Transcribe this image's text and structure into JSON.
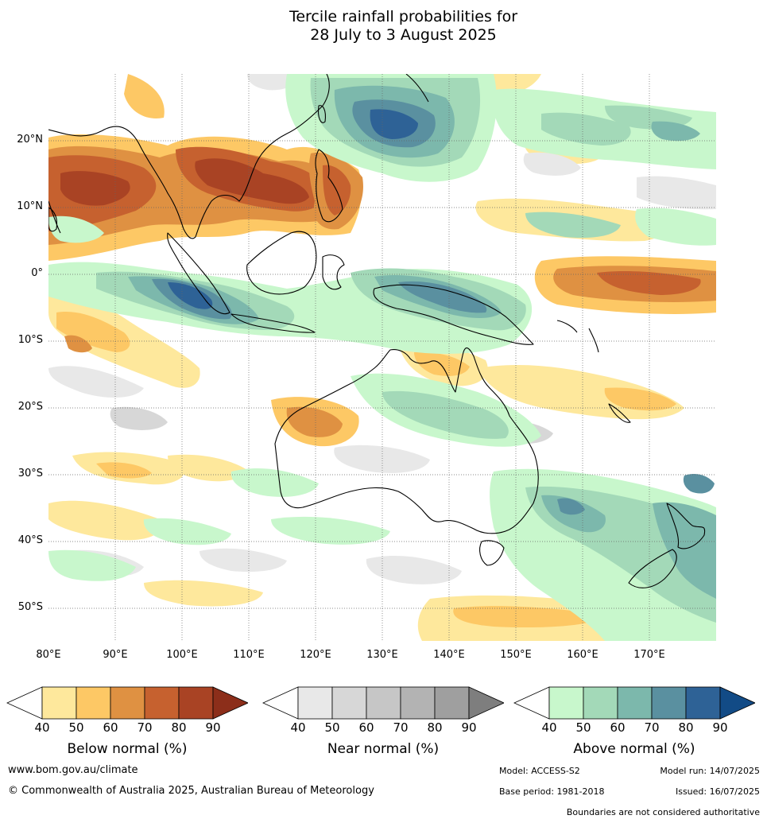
{
  "title_line1": "Tercile rainfall probabilities for",
  "title_line2": "28 July to 3 August 2025",
  "lat_labels": [
    "20°N",
    "10°N",
    "0°",
    "10°S",
    "20°S",
    "30°S",
    "40°S",
    "50°S"
  ],
  "lon_labels": [
    "80°E",
    "90°E",
    "100°E",
    "110°E",
    "120°E",
    "130°E",
    "140°E",
    "150°E",
    "160°E",
    "170°E"
  ],
  "colorbars": [
    {
      "name": "Below normal (%)",
      "ticks": [
        "40",
        "50",
        "60",
        "70",
        "80",
        "90"
      ],
      "colors": [
        "#ffffff",
        "#fee89c",
        "#fdc865",
        "#df9142",
        "#c6612f",
        "#a94324",
        "#8c2e1a"
      ]
    },
    {
      "name": "Near normal (%)",
      "ticks": [
        "40",
        "50",
        "60",
        "70",
        "80",
        "90"
      ],
      "colors": [
        "#ffffff",
        "#e8e8e8",
        "#d7d7d7",
        "#c6c6c6",
        "#b3b3b3",
        "#9f9f9f",
        "#7e7e7e"
      ]
    },
    {
      "name": "Above normal (%)",
      "ticks": [
        "40",
        "50",
        "60",
        "70",
        "80",
        "90"
      ],
      "colors": [
        "#ffffff",
        "#c8f7cc",
        "#a3d9b8",
        "#7cb8ac",
        "#5a90a0",
        "#2e6296",
        "#124b86"
      ]
    }
  ],
  "footer": {
    "website": "www.bom.gov.au/climate",
    "copyright": "© Commonwealth of Australia 2025, Australian Bureau of Meteorology",
    "model": "Model: ACCESS-S2",
    "model_run": "Model run: 14/07/2025",
    "base_period": "Base period: 1981-2018",
    "issued": "Issued: 16/07/2025",
    "disclaimer": "Boundaries are not considered authoritative"
  }
}
